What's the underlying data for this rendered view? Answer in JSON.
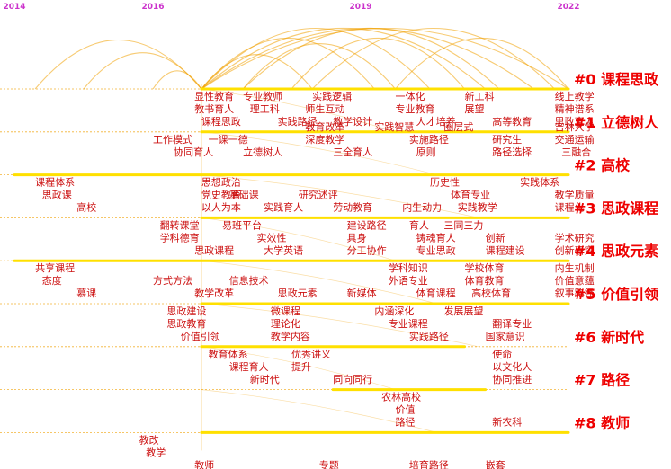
{
  "chart_data": {
    "type": "timeline",
    "title": "",
    "x_years": [
      "2014",
      "2016",
      "2019",
      "2022"
    ],
    "xlim": [
      2014,
      2022
    ],
    "colors": {
      "year": "#cc33cc",
      "cluster": "#ee0000",
      "keyword": "#cc1111",
      "guide": "#f0a000",
      "track": "#ffe000",
      "arc": "#f0a000"
    },
    "clusters": [
      {
        "id": 0,
        "label": "#0 课程思政"
      },
      {
        "id": 1,
        "label": "#1 立德树人"
      },
      {
        "id": 2,
        "label": "#2 高校"
      },
      {
        "id": 3,
        "label": "#3 思政课程"
      },
      {
        "id": 4,
        "label": "#4 思政元素"
      },
      {
        "id": 5,
        "label": "#5 价值引领"
      },
      {
        "id": 6,
        "label": "#6 新时代"
      },
      {
        "id": 7,
        "label": "#7 路径"
      },
      {
        "id": 8,
        "label": "#8 教师"
      }
    ],
    "tracks": [
      {
        "cluster": 0,
        "start": 2016.7,
        "end": 2022.0
      },
      {
        "cluster": 1,
        "start": 2016.7,
        "end": 2022.0
      },
      {
        "cluster": 2,
        "start": 2014.0,
        "end": 2022.0
      },
      {
        "cluster": 3,
        "start": 2016.7,
        "end": 2022.0
      },
      {
        "cluster": 4,
        "start": 2014.0,
        "end": 2022.0
      },
      {
        "cluster": 5,
        "start": 2016.7,
        "end": 2022.0
      },
      {
        "cluster": 6,
        "start": 2016.7,
        "end": 2020.5
      },
      {
        "cluster": 7,
        "start": 2018.6,
        "end": 2020.8
      },
      {
        "cluster": 8,
        "start": 2016.7,
        "end": 2022.0
      }
    ],
    "keywords": [
      {
        "text": "显性教育",
        "cluster": 0,
        "year": 2016.6,
        "line": 0
      },
      {
        "text": "教书育人",
        "cluster": 0,
        "year": 2016.6,
        "line": 1
      },
      {
        "text": "课程思政",
        "cluster": 0,
        "year": 2016.7,
        "line": 2
      },
      {
        "text": "专业教师",
        "cluster": 0,
        "year": 2017.3,
        "line": 0
      },
      {
        "text": "理工科",
        "cluster": 0,
        "year": 2017.4,
        "line": 1
      },
      {
        "text": "实践路径",
        "cluster": 0,
        "year": 2017.8,
        "line": 2
      },
      {
        "text": "实践逻辑",
        "cluster": 0,
        "year": 2018.3,
        "line": 0
      },
      {
        "text": "师生互动",
        "cluster": 0,
        "year": 2018.2,
        "line": 1
      },
      {
        "text": "教学设计",
        "cluster": 0,
        "year": 2018.6,
        "line": 2
      },
      {
        "text": "一体化",
        "cluster": 0,
        "year": 2019.5,
        "line": 0
      },
      {
        "text": "专业教育",
        "cluster": 0,
        "year": 2019.5,
        "line": 1
      },
      {
        "text": "人才培养",
        "cluster": 0,
        "year": 2019.8,
        "line": 2
      },
      {
        "text": "新工科",
        "cluster": 0,
        "year": 2020.5,
        "line": 0
      },
      {
        "text": "展望",
        "cluster": 0,
        "year": 2020.5,
        "line": 1
      },
      {
        "text": "高等教育",
        "cluster": 0,
        "year": 2020.9,
        "line": 2
      },
      {
        "text": "线上教学",
        "cluster": 0,
        "year": 2021.8,
        "line": 0
      },
      {
        "text": "精神谱系",
        "cluster": 0,
        "year": 2021.8,
        "line": 1
      },
      {
        "text": "思政育人",
        "cluster": 0,
        "year": 2021.8,
        "line": 2
      },
      {
        "text": "工作模式",
        "cluster": 1,
        "year": 2016.0,
        "line": 0
      },
      {
        "text": "一课一德",
        "cluster": 1,
        "year": 2016.8,
        "line": 0
      },
      {
        "text": "协同育人",
        "cluster": 1,
        "year": 2016.3,
        "line": 1
      },
      {
        "text": "立德树人",
        "cluster": 1,
        "year": 2017.3,
        "line": 1
      },
      {
        "text": "教育改革",
        "cluster": 1,
        "year": 2018.2,
        "line": -1
      },
      {
        "text": "深度教学",
        "cluster": 1,
        "year": 2018.2,
        "line": 0
      },
      {
        "text": "三全育人",
        "cluster": 1,
        "year": 2018.6,
        "line": 1
      },
      {
        "text": "实践智慧",
        "cluster": 1,
        "year": 2019.2,
        "line": -1
      },
      {
        "text": "实施路径",
        "cluster": 1,
        "year": 2019.7,
        "line": 0
      },
      {
        "text": "原则",
        "cluster": 1,
        "year": 2019.8,
        "line": 1
      },
      {
        "text": "圈层式",
        "cluster": 1,
        "year": 2020.2,
        "line": -1
      },
      {
        "text": "研究生",
        "cluster": 1,
        "year": 2020.9,
        "line": 0
      },
      {
        "text": "路径选择",
        "cluster": 1,
        "year": 2020.9,
        "line": 1
      },
      {
        "text": "吉林大学",
        "cluster": 1,
        "year": 2021.8,
        "line": -1
      },
      {
        "text": "交通运输",
        "cluster": 1,
        "year": 2021.8,
        "line": 0
      },
      {
        "text": "三融合",
        "cluster": 1,
        "year": 2021.9,
        "line": 1
      },
      {
        "text": "课程体系",
        "cluster": 2,
        "year": 2014.3,
        "line": 0
      },
      {
        "text": "思政课",
        "cluster": 2,
        "year": 2014.4,
        "line": 1
      },
      {
        "text": "高校",
        "cluster": 2,
        "year": 2014.9,
        "line": 2
      },
      {
        "text": "思想政治",
        "cluster": 2,
        "year": 2016.7,
        "line": 0
      },
      {
        "text": "党史教育",
        "cluster": 2,
        "year": 2016.7,
        "line": 1
      },
      {
        "text": "基础课",
        "cluster": 2,
        "year": 2017.1,
        "line": 1
      },
      {
        "text": "以人为本",
        "cluster": 2,
        "year": 2016.7,
        "line": 2
      },
      {
        "text": "实践育人",
        "cluster": 2,
        "year": 2017.6,
        "line": 2
      },
      {
        "text": "研究述评",
        "cluster": 2,
        "year": 2018.1,
        "line": 1
      },
      {
        "text": "劳动教育",
        "cluster": 2,
        "year": 2018.6,
        "line": 2
      },
      {
        "text": "内生动力",
        "cluster": 2,
        "year": 2019.6,
        "line": 2
      },
      {
        "text": "历史性",
        "cluster": 2,
        "year": 2020.0,
        "line": 0
      },
      {
        "text": "体育专业",
        "cluster": 2,
        "year": 2020.3,
        "line": 1
      },
      {
        "text": "实践教学",
        "cluster": 2,
        "year": 2020.4,
        "line": 2
      },
      {
        "text": "实践体系",
        "cluster": 2,
        "year": 2021.3,
        "line": 0
      },
      {
        "text": "教学质量",
        "cluster": 2,
        "year": 2021.8,
        "line": 1
      },
      {
        "text": "课程化",
        "cluster": 2,
        "year": 2021.8,
        "line": 2
      },
      {
        "text": "翻转课堂",
        "cluster": 3,
        "year": 2016.1,
        "line": 0
      },
      {
        "text": "学科德育",
        "cluster": 3,
        "year": 2016.1,
        "line": 1
      },
      {
        "text": "思政课程",
        "cluster": 3,
        "year": 2016.6,
        "line": 2
      },
      {
        "text": "易班平台",
        "cluster": 3,
        "year": 2017.0,
        "line": 0
      },
      {
        "text": "实效性",
        "cluster": 3,
        "year": 2017.5,
        "line": 1
      },
      {
        "text": "大学英语",
        "cluster": 3,
        "year": 2017.6,
        "line": 2
      },
      {
        "text": "建设路径",
        "cluster": 3,
        "year": 2018.8,
        "line": 0
      },
      {
        "text": "具身",
        "cluster": 3,
        "year": 2018.8,
        "line": 1
      },
      {
        "text": "分工协作",
        "cluster": 3,
        "year": 2018.8,
        "line": 2
      },
      {
        "text": "育人",
        "cluster": 3,
        "year": 2019.7,
        "line": 0
      },
      {
        "text": "三同三力",
        "cluster": 3,
        "year": 2020.2,
        "line": 0
      },
      {
        "text": "铸魂育人",
        "cluster": 3,
        "year": 2019.8,
        "line": 1
      },
      {
        "text": "专业思政",
        "cluster": 3,
        "year": 2019.8,
        "line": 2
      },
      {
        "text": "创新",
        "cluster": 3,
        "year": 2020.8,
        "line": 1
      },
      {
        "text": "课程建设",
        "cluster": 3,
        "year": 2020.8,
        "line": 2
      },
      {
        "text": "学术研究",
        "cluster": 3,
        "year": 2021.8,
        "line": 1
      },
      {
        "text": "创新研究",
        "cluster": 3,
        "year": 2021.8,
        "line": 2
      },
      {
        "text": "共享课程",
        "cluster": 4,
        "year": 2014.3,
        "line": 0
      },
      {
        "text": "态度",
        "cluster": 4,
        "year": 2014.4,
        "line": 1
      },
      {
        "text": "慕课",
        "cluster": 4,
        "year": 2014.9,
        "line": 2
      },
      {
        "text": "方式方法",
        "cluster": 4,
        "year": 2016.0,
        "line": 1
      },
      {
        "text": "信息技术",
        "cluster": 4,
        "year": 2017.1,
        "line": 1
      },
      {
        "text": "教学改革",
        "cluster": 4,
        "year": 2016.6,
        "line": 2
      },
      {
        "text": "思政元素",
        "cluster": 4,
        "year": 2017.8,
        "line": 2
      },
      {
        "text": "新媒体",
        "cluster": 4,
        "year": 2018.8,
        "line": 2
      },
      {
        "text": "学科知识",
        "cluster": 4,
        "year": 2019.4,
        "line": 0
      },
      {
        "text": "外语专业",
        "cluster": 4,
        "year": 2019.4,
        "line": 1
      },
      {
        "text": "体育课程",
        "cluster": 4,
        "year": 2019.8,
        "line": 2
      },
      {
        "text": "学校体育",
        "cluster": 4,
        "year": 2020.5,
        "line": 0
      },
      {
        "text": "体育教育",
        "cluster": 4,
        "year": 2020.5,
        "line": 1
      },
      {
        "text": "高校体育",
        "cluster": 4,
        "year": 2020.6,
        "line": 2
      },
      {
        "text": "内生机制",
        "cluster": 4,
        "year": 2021.8,
        "line": 0
      },
      {
        "text": "价值意蕴",
        "cluster": 4,
        "year": 2021.8,
        "line": 1
      },
      {
        "text": "叙事路径",
        "cluster": 4,
        "year": 2021.8,
        "line": 2
      },
      {
        "text": "思政建设",
        "cluster": 5,
        "year": 2016.2,
        "line": 0
      },
      {
        "text": "思政教育",
        "cluster": 5,
        "year": 2016.2,
        "line": 1
      },
      {
        "text": "价值引领",
        "cluster": 5,
        "year": 2016.4,
        "line": 2
      },
      {
        "text": "微课程",
        "cluster": 5,
        "year": 2017.7,
        "line": 0
      },
      {
        "text": "理论化",
        "cluster": 5,
        "year": 2017.7,
        "line": 1
      },
      {
        "text": "教学内容",
        "cluster": 5,
        "year": 2017.7,
        "line": 2
      },
      {
        "text": "内涵深化",
        "cluster": 5,
        "year": 2019.2,
        "line": 0
      },
      {
        "text": "专业课程",
        "cluster": 5,
        "year": 2019.4,
        "line": 1
      },
      {
        "text": "实践路径",
        "cluster": 5,
        "year": 2019.7,
        "line": 2
      },
      {
        "text": "发展展望",
        "cluster": 5,
        "year": 2020.2,
        "line": 0
      },
      {
        "text": "翻译专业",
        "cluster": 5,
        "year": 2020.9,
        "line": 1
      },
      {
        "text": "国家意识",
        "cluster": 5,
        "year": 2020.8,
        "line": 2
      },
      {
        "text": "教育体系",
        "cluster": 6,
        "year": 2016.8,
        "line": 0
      },
      {
        "text": "课程育人",
        "cluster": 6,
        "year": 2017.1,
        "line": 1
      },
      {
        "text": "新时代",
        "cluster": 6,
        "year": 2017.4,
        "line": 2
      },
      {
        "text": "优秀讲义",
        "cluster": 6,
        "year": 2018.0,
        "line": 0
      },
      {
        "text": "提升",
        "cluster": 6,
        "year": 2018.0,
        "line": 1
      },
      {
        "text": "同向同行",
        "cluster": 6,
        "year": 2018.6,
        "line": 2
      },
      {
        "text": "使命",
        "cluster": 6,
        "year": 2020.9,
        "line": 0
      },
      {
        "text": "以文化人",
        "cluster": 6,
        "year": 2020.9,
        "line": 1
      },
      {
        "text": "协同推进",
        "cluster": 6,
        "year": 2020.9,
        "line": 2
      },
      {
        "text": "农林高校",
        "cluster": 7,
        "year": 2019.3,
        "line": 0
      },
      {
        "text": "价值",
        "cluster": 7,
        "year": 2019.5,
        "line": 1
      },
      {
        "text": "路径",
        "cluster": 7,
        "year": 2019.5,
        "line": 2
      },
      {
        "text": "新农科",
        "cluster": 7,
        "year": 2020.9,
        "line": 2
      },
      {
        "text": "教改",
        "cluster": 8,
        "year": 2015.8,
        "line": 0
      },
      {
        "text": "教学",
        "cluster": 8,
        "year": 2015.9,
        "line": 1
      },
      {
        "text": "教师",
        "cluster": 8,
        "year": 2016.6,
        "line": 2
      },
      {
        "text": "专题",
        "cluster": 8,
        "year": 2018.4,
        "line": 2
      },
      {
        "text": "培育路径",
        "cluster": 8,
        "year": 2019.7,
        "line": 2
      },
      {
        "text": "嵌套",
        "cluster": 8,
        "year": 2020.8,
        "line": 2
      }
    ],
    "arcs": [
      {
        "from": 2016.7,
        "to": 2018.3
      },
      {
        "from": 2016.7,
        "to": 2019.2
      },
      {
        "from": 2016.7,
        "to": 2020.0
      },
      {
        "from": 2016.7,
        "to": 2020.8
      },
      {
        "from": 2016.7,
        "to": 2021.5
      },
      {
        "from": 2016.7,
        "to": 2022.0
      },
      {
        "from": 2017.3,
        "to": 2019.5
      },
      {
        "from": 2017.3,
        "to": 2021.0
      },
      {
        "from": 2018.0,
        "to": 2020.5
      },
      {
        "from": 2018.3,
        "to": 2021.8
      },
      {
        "from": 2019.5,
        "to": 2022.0
      },
      {
        "from": 2014.3,
        "to": 2016.7
      },
      {
        "from": 2015.0,
        "to": 2016.7
      },
      {
        "from": 2016.0,
        "to": 2016.7
      }
    ]
  }
}
